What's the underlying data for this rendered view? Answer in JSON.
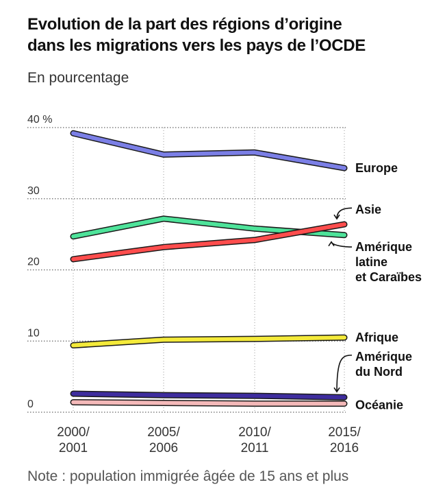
{
  "header": {
    "title_line1": "Evolution de la part des régions d’origine",
    "title_line2": "dans les migrations vers les pays de l’OCDE",
    "subtitle": "En pourcentage"
  },
  "footer": {
    "note": "Note : population immigrée âgée de 15 ans et plus"
  },
  "chart_data": {
    "type": "line",
    "title": "Evolution de la part des régions d’origine dans les migrations vers les pays de l’OCDE",
    "subtitle": "En pourcentage",
    "x_labels": [
      [
        "2000/",
        "2001"
      ],
      [
        "2005/",
        "2006"
      ],
      [
        "2010/",
        "2011"
      ],
      [
        "2015/",
        "2016"
      ]
    ],
    "y_ticks": [
      0,
      10,
      20,
      30,
      40
    ],
    "y_tick_labels": [
      "0",
      "10",
      "20",
      "30",
      "40 %"
    ],
    "ylim": [
      0,
      40
    ],
    "grid": "horizontal dotted",
    "series": [
      {
        "name": "Europe",
        "label_lines": [
          "Europe"
        ],
        "color": "#7b7fe6",
        "values": [
          39.2,
          36.2,
          36.5,
          34.3
        ],
        "label_y": 34.3,
        "arrow": "none"
      },
      {
        "name": "Asie",
        "label_lines": [
          "Asie"
        ],
        "color": "#ff4d4d",
        "values": [
          21.5,
          23.2,
          24.2,
          26.4
        ],
        "label_y": 28.5,
        "arrow": "down"
      },
      {
        "name": "Amérique latine et Caraïbes",
        "label_lines": [
          "Amérique",
          "latine",
          "et Caraïbes"
        ],
        "color": "#4ee39a",
        "values": [
          24.7,
          27.2,
          25.8,
          24.9
        ],
        "label_y": 23.8,
        "arrow": "up"
      },
      {
        "name": "Afrique",
        "label_lines": [
          "Afrique"
        ],
        "color": "#f4ea3a",
        "values": [
          9.4,
          10.2,
          10.3,
          10.5
        ],
        "label_y": 10.5,
        "arrow": "none"
      },
      {
        "name": "Amérique du Nord",
        "label_lines": [
          "Amérique",
          "du Nord"
        ],
        "color": "#3e2d9e",
        "values": [
          2.6,
          2.4,
          2.3,
          2.1
        ],
        "label_y": 5.7,
        "arrow": "down"
      },
      {
        "name": "Océanie",
        "label_lines": [
          "Océanie"
        ],
        "color": "#f4b9b9",
        "values": [
          1.4,
          1.3,
          1.2,
          1.2
        ],
        "label_y": 1.0,
        "arrow": "none"
      }
    ]
  }
}
